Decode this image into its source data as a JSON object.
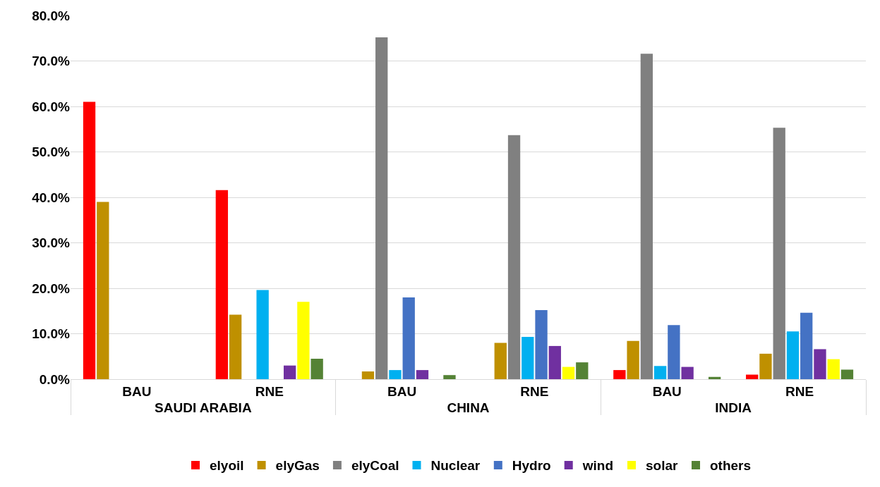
{
  "chart_data": {
    "type": "bar",
    "categories": [
      "BAU",
      "RNE",
      "BAU",
      "RNE",
      "BAU",
      "RNE"
    ],
    "annotations": [
      "SAUDI ARABIA",
      "CHINA",
      "INDIA"
    ],
    "series": [
      {
        "name": "elyoil",
        "color": "#ff0000",
        "values": [
          61.0,
          41.6,
          0,
          0,
          2.0,
          1.0
        ]
      },
      {
        "name": "elyGas",
        "color": "#bf9000",
        "values": [
          39.0,
          14.2,
          1.7,
          8.0,
          8.4,
          5.6
        ]
      },
      {
        "name": "elyCoal",
        "color": "#808080",
        "values": [
          0,
          0,
          75.2,
          53.7,
          71.6,
          55.3
        ]
      },
      {
        "name": "Nuclear",
        "color": "#00b0f0",
        "values": [
          0,
          19.6,
          2.0,
          9.3,
          2.9,
          10.5
        ]
      },
      {
        "name": "Hydro",
        "color": "#4472c4",
        "values": [
          0,
          0,
          18.0,
          15.2,
          11.9,
          14.6
        ]
      },
      {
        "name": "wind",
        "color": "#7030a0",
        "values": [
          0,
          3.0,
          2.0,
          7.3,
          2.7,
          6.6
        ]
      },
      {
        "name": "solar",
        "color": "#ffff00",
        "values": [
          0,
          17.0,
          0,
          2.7,
          0,
          4.4
        ]
      },
      {
        "name": "others",
        "color": "#548235",
        "values": [
          0,
          4.5,
          0.9,
          3.7,
          0.5,
          2.1
        ]
      }
    ],
    "ylim": [
      0,
      80
    ],
    "yticks": [
      {
        "value": 0,
        "label": "0.0%"
      },
      {
        "value": 10,
        "label": "10.0%"
      },
      {
        "value": 20,
        "label": "20.0%"
      },
      {
        "value": 30,
        "label": "30.0%"
      },
      {
        "value": 40,
        "label": "40.0%"
      },
      {
        "value": 50,
        "label": "50.0%"
      },
      {
        "value": 60,
        "label": "60.0%"
      },
      {
        "value": 70,
        "label": "70.0%"
      },
      {
        "value": 80,
        "label": "80.0%"
      }
    ],
    "grid": "y",
    "legend": "bottom"
  }
}
